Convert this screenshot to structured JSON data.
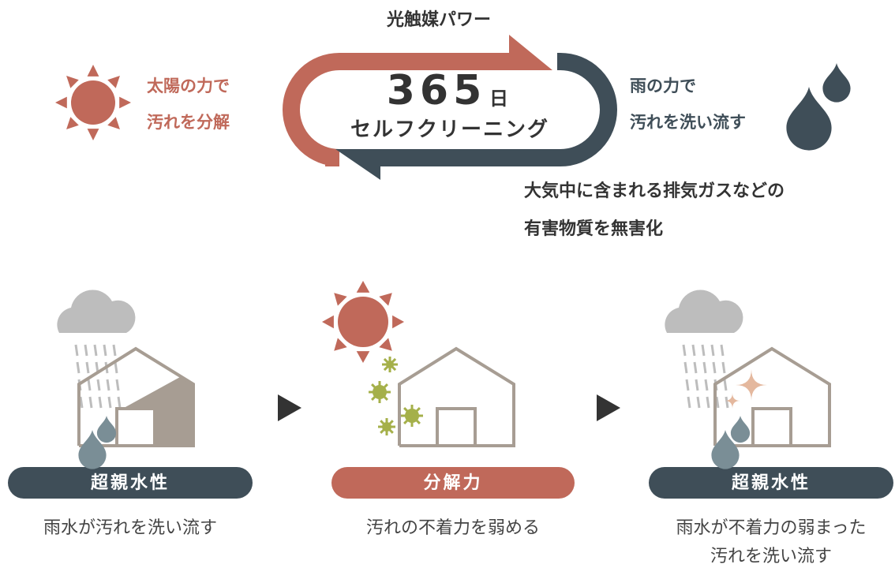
{
  "cycle": {
    "title": "光触媒パワー",
    "days": "365",
    "days_unit": "日",
    "subtitle": "セルフクリーニング"
  },
  "sun_text": [
    "太陽の力で",
    "汚れを分解"
  ],
  "rain_text": [
    "雨の力で",
    "汚れを洗い流す"
  ],
  "note": [
    "大気中に含まれる排気ガスなどの",
    "有害物質を無害化"
  ],
  "steps": [
    {
      "label": "超親水性",
      "caption": [
        "雨水が汚れを洗い流す"
      ]
    },
    {
      "label": "分解力",
      "caption": [
        "汚れの不着力を弱める"
      ]
    },
    {
      "label": "超親水性",
      "caption": [
        "雨水が不着力の弱まった",
        "汚れを洗い流す"
      ]
    }
  ]
}
